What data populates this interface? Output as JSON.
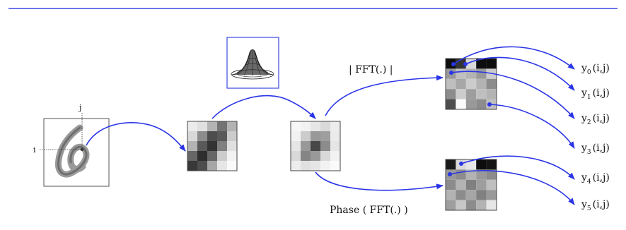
{
  "labels": {
    "i": "i",
    "j": "j",
    "fft_magnitude": "| FFT(.) |",
    "phase": "Phase ( FFT(.) )"
  },
  "outputs": [
    {
      "base": "y",
      "sub": "0",
      "suffix": "(i,j)"
    },
    {
      "base": "y",
      "sub": "1",
      "suffix": "(i,j)"
    },
    {
      "base": "y",
      "sub": "2",
      "suffix": "(i,j)"
    },
    {
      "base": "y",
      "sub": "3",
      "suffix": "(i,j)"
    },
    {
      "base": "y",
      "sub": "4",
      "suffix": "(i,j)"
    },
    {
      "base": "y",
      "sub": "5",
      "suffix": "(i,j)"
    }
  ],
  "colors": {
    "top_rule": "#3b46e0",
    "arrow": "#2a35e6",
    "gaussian_frame": "#3b46e0"
  },
  "icons": [
    "digit-image",
    "gaussian-surface",
    "fft-magnitude-grid",
    "fft-phase-grid"
  ]
}
